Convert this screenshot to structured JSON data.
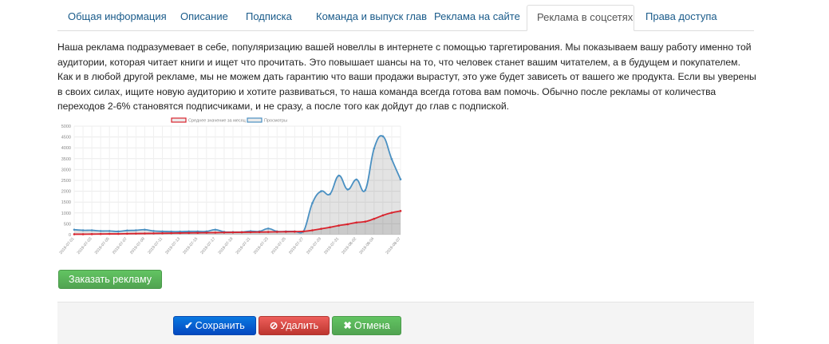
{
  "tabs": [
    {
      "label": "Общая информация",
      "active": false
    },
    {
      "label": "Описание",
      "active": false
    },
    {
      "label": "Подписка",
      "active": false
    },
    {
      "label": "Команда и выпуск глав",
      "active": false
    },
    {
      "label": "Реклама на сайте",
      "active": false
    },
    {
      "label": "Реклама в соцсетях",
      "active": true
    },
    {
      "label": "Права доступа",
      "active": false
    }
  ],
  "description": "Наша реклама подразумевает в себе, популяризацию вашей новеллы в интернете с помощью таргетирования. Мы показываем вашу работу именно той аудитории, которая читает книги и ищет что прочитать. Это повышает шансы на то, что человек станет вашим читателем, а в будущем и покупателем. Как и в любой другой рекламе, мы не можем дать гарантию что ваши продажи вырастут, это уже будет зависеть от вашего же продукта. Если вы уверены в своих силах, ищите новую аудиторию и хотите развиваться, то наша команда всегда готова вам помочь. Обычно после рекламы от количества переходов 2-6% становятся подписчиками, и не сразу, а после того как дойдут до глав с подпиской.",
  "chart_data": {
    "type": "line",
    "x": [
      "2019-07-01",
      "2019-07-02",
      "2019-07-03",
      "2019-07-04",
      "2019-07-05",
      "2019-07-06",
      "2019-07-07",
      "2019-07-08",
      "2019-07-09",
      "2019-07-10",
      "2019-07-11",
      "2019-07-12",
      "2019-07-13",
      "2019-07-14",
      "2019-07-15",
      "2019-07-16",
      "2019-07-17",
      "2019-07-18",
      "2019-07-19",
      "2019-07-20",
      "2019-07-21",
      "2019-07-22",
      "2019-07-23",
      "2019-07-24",
      "2019-07-25",
      "2019-07-26",
      "2019-07-27",
      "2019-07-28",
      "2019-07-29",
      "2019-07-30",
      "2019-07-31",
      "2019-08-01",
      "2019-08-02",
      "2019-08-03",
      "2019-08-04",
      "2019-08-05",
      "2019-08-06",
      "2019-08-07"
    ],
    "xtick_labels": [
      "2019-07-01",
      "2019-07-03",
      "2019-07-05",
      "2019-07-07",
      "2019-07-09",
      "2019-07-11",
      "2019-07-13",
      "2019-07-15",
      "2019-07-17",
      "2019-07-19",
      "2019-07-21",
      "2019-07-23",
      "2019-07-25",
      "2019-07-27",
      "2019-07-29",
      "2019-07-31",
      "2019-08-02",
      "2019-08-04",
      "2019-08-07"
    ],
    "yticks": [
      0,
      500,
      1000,
      1500,
      2000,
      2500,
      3000,
      3500,
      4000,
      4500,
      5000
    ],
    "ylim": [
      0,
      5000
    ],
    "grid": true,
    "legend": "top",
    "series": [
      {
        "name": "Среднее значение за месяц",
        "color": "#d9232d",
        "values": [
          20,
          20,
          25,
          30,
          35,
          35,
          45,
          50,
          55,
          60,
          65,
          70,
          75,
          80,
          85,
          90,
          95,
          100,
          105,
          110,
          115,
          120,
          125,
          130,
          135,
          140,
          150,
          200,
          270,
          340,
          420,
          480,
          560,
          600,
          730,
          890,
          1010,
          1090
        ]
      },
      {
        "name": "Просмотры",
        "color": "#4a90c2",
        "values": [
          230,
          200,
          200,
          170,
          170,
          150,
          190,
          200,
          230,
          170,
          150,
          140,
          140,
          150,
          150,
          150,
          230,
          130,
          120,
          120,
          160,
          150,
          280,
          150,
          150,
          150,
          150,
          1450,
          2000,
          1870,
          2720,
          2080,
          2540,
          2050,
          3970,
          4530,
          3480,
          2550
        ]
      }
    ]
  },
  "order_button": "Заказать рекламу",
  "footer": {
    "save": "Сохранить",
    "delete": "Удалить",
    "cancel": "Отмена"
  }
}
